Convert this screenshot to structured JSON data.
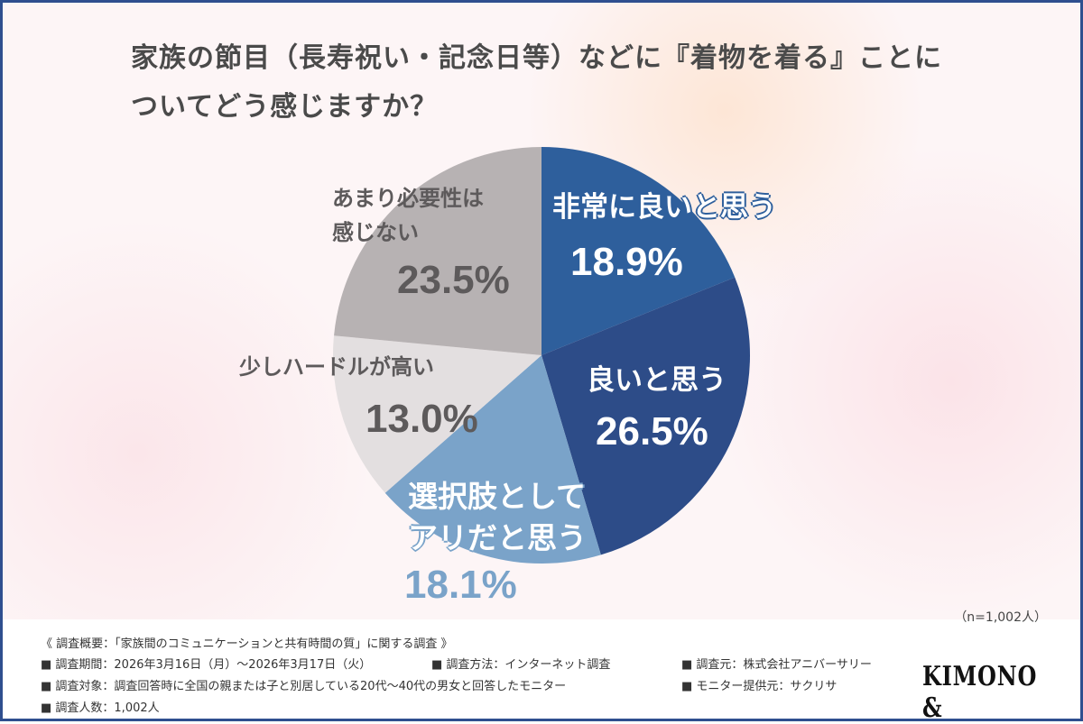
{
  "title_line1": "家族の節目（長寿祝い・記念日等）などに『着物を着る』ことに",
  "title_line2": "ついてどう感じますか？",
  "chart_data": {
    "type": "pie",
    "start": "top",
    "direction": "clockwise",
    "slices": [
      {
        "label": "非常に良いと思う",
        "value": 18.9,
        "value_label": "18.9%",
        "color": "#2e5f9c"
      },
      {
        "label": "良いと思う",
        "value": 26.5,
        "value_label": "26.5%",
        "color": "#2d4c88"
      },
      {
        "label": "選択肢として アリだと思う",
        "label_lines": [
          "選択肢として",
          "アリだと思う"
        ],
        "value": 18.1,
        "value_label": "18.1%",
        "color": "#7aa3c9"
      },
      {
        "label": "少しハードルが高い",
        "value": 13.0,
        "value_label": "13.0%",
        "color": "#e3dfe0"
      },
      {
        "label": "あまり必要性は 感じない",
        "label_lines": [
          "あまり必要性は",
          "感じない"
        ],
        "value": 23.5,
        "value_label": "23.5%",
        "color": "#b7b2b3"
      }
    ]
  },
  "sample_note": "（n=1,002人）",
  "footer": {
    "heading": "《 調査概要：「家族間のコミュニケーションと共有時間の質」に関する調査 》",
    "period": "■ 調査期間：2026年3月16日（月）〜2026年3月17日（火）",
    "method": "■ 調査方法：インターネット調査",
    "source": "■ 調査元：株式会社アニバーサリー",
    "target": "■ 調査対象：調査回答時に全国の親または子と別居している20代〜40代の男女と回答したモニター",
    "provider": "■ モニター提供元：サクリサ",
    "count": "■ 調査人数：1,002人"
  },
  "logo": "KIMONO &"
}
